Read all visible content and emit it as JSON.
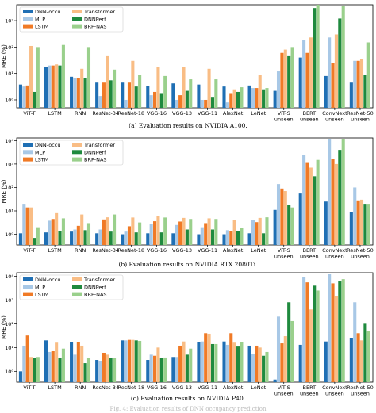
{
  "colors": {
    "DNN-occu": "#1f6fb4",
    "MLP": "#a8c8e6",
    "LSTM": "#f07a26",
    "Transformer": "#f9bd85",
    "DNNPerf": "#1f8a3e",
    "BRP-NAS": "#9ad08c"
  },
  "footer_caption": "Fig. 4: Evaluation results of DNN occupancy prediction",
  "chart_data": [
    {
      "type": "bar",
      "caption": "(a) Evaluation results on NVIDIA A100.",
      "ylabel": "MRE (%)",
      "yscale": "log",
      "ylim": [
        0.5,
        4000
      ],
      "yticks": [
        {
          "v": 1,
          "label": "10⁰"
        },
        {
          "v": 10,
          "label": "10¹"
        },
        {
          "v": 100,
          "label": "10²"
        },
        {
          "v": 1000,
          "label": "10³"
        }
      ],
      "legend": "top-left",
      "categories": [
        "ViT-T",
        "LSTM",
        "RNN",
        "ResNet-34",
        "ResNet-18",
        "VGG-16",
        "VGG-13",
        "VGG-11",
        "AlexNet",
        "LeNet",
        "ViT-S unseen",
        "BERT unseen",
        "ConvNext unseen",
        "ResNet-50 unseen"
      ],
      "series": [
        {
          "name": "DNN-occu",
          "values": [
            3.8,
            18,
            7.5,
            4.5,
            4.5,
            3.3,
            4.2,
            3.8,
            3.2,
            3.5,
            2.2,
            40,
            8,
            4.5
          ]
        },
        {
          "name": "MLP",
          "values": [
            3.2,
            20,
            6.5,
            1.4,
            1.0,
            1.5,
            1.0,
            1.0,
            0.8,
            2.8,
            12,
            180,
            230,
            30
          ]
        },
        {
          "name": "LSTM",
          "values": [
            3.5,
            20,
            6.8,
            4.5,
            4.5,
            2.0,
            1.5,
            1.0,
            1.8,
            2.8,
            60,
            60,
            25,
            30
          ]
        },
        {
          "name": "Transformer",
          "values": [
            110,
            22,
            15,
            45,
            30,
            18,
            18,
            15,
            2.5,
            9,
            80,
            230,
            300,
            35
          ]
        },
        {
          "name": "DNNPerf",
          "values": [
            2.0,
            20,
            6.5,
            5.5,
            3.2,
            1.8,
            2.2,
            1.3,
            2.0,
            2.5,
            45,
            3000,
            1200,
            9
          ]
        },
        {
          "name": "BRP-NAS",
          "values": [
            100,
            120,
            100,
            14,
            9,
            8,
            6,
            6,
            3.0,
            2.8,
            100,
            4000,
            3500,
            150
          ]
        }
      ]
    },
    {
      "type": "bar",
      "caption": "(b) Evaluation results on NVIDIA RTX 2080Ti.",
      "ylabel": "MRE (%)",
      "yscale": "log",
      "ylim": [
        0.35,
        13000
      ],
      "yticks": [
        {
          "v": 1,
          "label": "10⁰"
        },
        {
          "v": 10,
          "label": "10¹"
        },
        {
          "v": 100,
          "label": "10²"
        },
        {
          "v": 1000,
          "label": "10³"
        },
        {
          "v": 10000,
          "label": "10⁴"
        }
      ],
      "legend": "top-left",
      "categories": [
        "ViT-T",
        "LSTM",
        "RNN",
        "ResNet-34",
        "ResNet-18",
        "VGG-16",
        "VGG-13",
        "VGG-11",
        "AlexNet",
        "LeNet",
        "ViT-S unseen",
        "BERT unseen",
        "ConvNext unseen",
        "ResNet-50 unseen"
      ],
      "series": [
        {
          "name": "DNN-occu",
          "values": [
            1.1,
            1.2,
            1.3,
            1.1,
            1.0,
            1.1,
            1.1,
            1.0,
            1.0,
            1.1,
            11,
            55,
            25,
            9
          ]
        },
        {
          "name": "MLP",
          "values": [
            20,
            3.8,
            1.6,
            1.6,
            1.3,
            2.8,
            2.5,
            2.0,
            1.5,
            4.2,
            140,
            2500,
            12000,
            100
          ]
        },
        {
          "name": "LSTM",
          "values": [
            14,
            4.5,
            2.3,
            4.3,
            2.2,
            3.6,
            3.5,
            3.0,
            1.4,
            3.3,
            90,
            1200,
            1600,
            28
          ]
        },
        {
          "name": "Transformer",
          "values": [
            14,
            8,
            7,
            5.3,
            5.2,
            5.8,
            5.0,
            4.8,
            4.0,
            5.0,
            70,
            700,
            1000,
            30
          ]
        },
        {
          "name": "DNNPerf",
          "values": [
            0.7,
            1.4,
            1.5,
            1.3,
            1.2,
            1.2,
            1.6,
            1.6,
            1.4,
            1.1,
            18,
            300,
            4000,
            20
          ]
        },
        {
          "name": "BRP-NAS",
          "values": [
            2.0,
            4.8,
            3.0,
            7.0,
            3.2,
            5.2,
            4.5,
            4.5,
            1.8,
            5.3,
            14,
            1500,
            12000,
            20
          ]
        }
      ]
    },
    {
      "type": "bar",
      "caption": "(c) Evaluation results on NVIDIA P40.",
      "ylabel": "MRE (%)",
      "yscale": "log",
      "ylim": [
        0.35,
        14000
      ],
      "yticks": [
        {
          "v": 1,
          "label": "10⁰"
        },
        {
          "v": 10,
          "label": "10¹"
        },
        {
          "v": 100,
          "label": "10²"
        },
        {
          "v": 1000,
          "label": "10³"
        },
        {
          "v": 10000,
          "label": "10⁴"
        }
      ],
      "legend": "top-left",
      "categories": [
        "ViT-T",
        "LSTM",
        "RNN",
        "ResNet-34",
        "ResNet-18",
        "VGG-16",
        "VGG-13",
        "VGG-11",
        "AlexNet",
        "LeNet",
        "ViT-S unseen",
        "BERT unseen",
        "ConvNext unseen",
        "ResNet-50 unseen"
      ],
      "series": [
        {
          "name": "DNN-occu",
          "values": [
            1.0,
            20,
            17,
            3.0,
            20,
            3.0,
            4.0,
            17,
            18,
            12,
            0.45,
            13,
            18,
            25
          ]
        },
        {
          "name": "MLP",
          "values": [
            12,
            6.5,
            5.0,
            2.6,
            20,
            5.0,
            4.0,
            18,
            13,
            5.5,
            200,
            9000,
            12000,
            800
          ]
        },
        {
          "name": "LSTM",
          "values": [
            32,
            7.0,
            17,
            6.0,
            21,
            4.5,
            12,
            40,
            40,
            12,
            15,
            5500,
            5000,
            40
          ]
        },
        {
          "name": "Transformer",
          "values": [
            4.0,
            16,
            12,
            5.0,
            21,
            10,
            18,
            38,
            16,
            10,
            30,
            400,
            1500,
            20
          ]
        },
        {
          "name": "DNNPerf",
          "values": [
            3.5,
            3.6,
            2.2,
            3.7,
            20,
            3.7,
            5.0,
            14,
            11,
            4.5,
            800,
            4000,
            6000,
            100
          ]
        },
        {
          "name": "BRP-NAS",
          "values": [
            4.0,
            9.0,
            3.7,
            3.5,
            19,
            3.8,
            9.0,
            14,
            17,
            6.5,
            130,
            2500,
            7500,
            50
          ]
        }
      ]
    }
  ]
}
